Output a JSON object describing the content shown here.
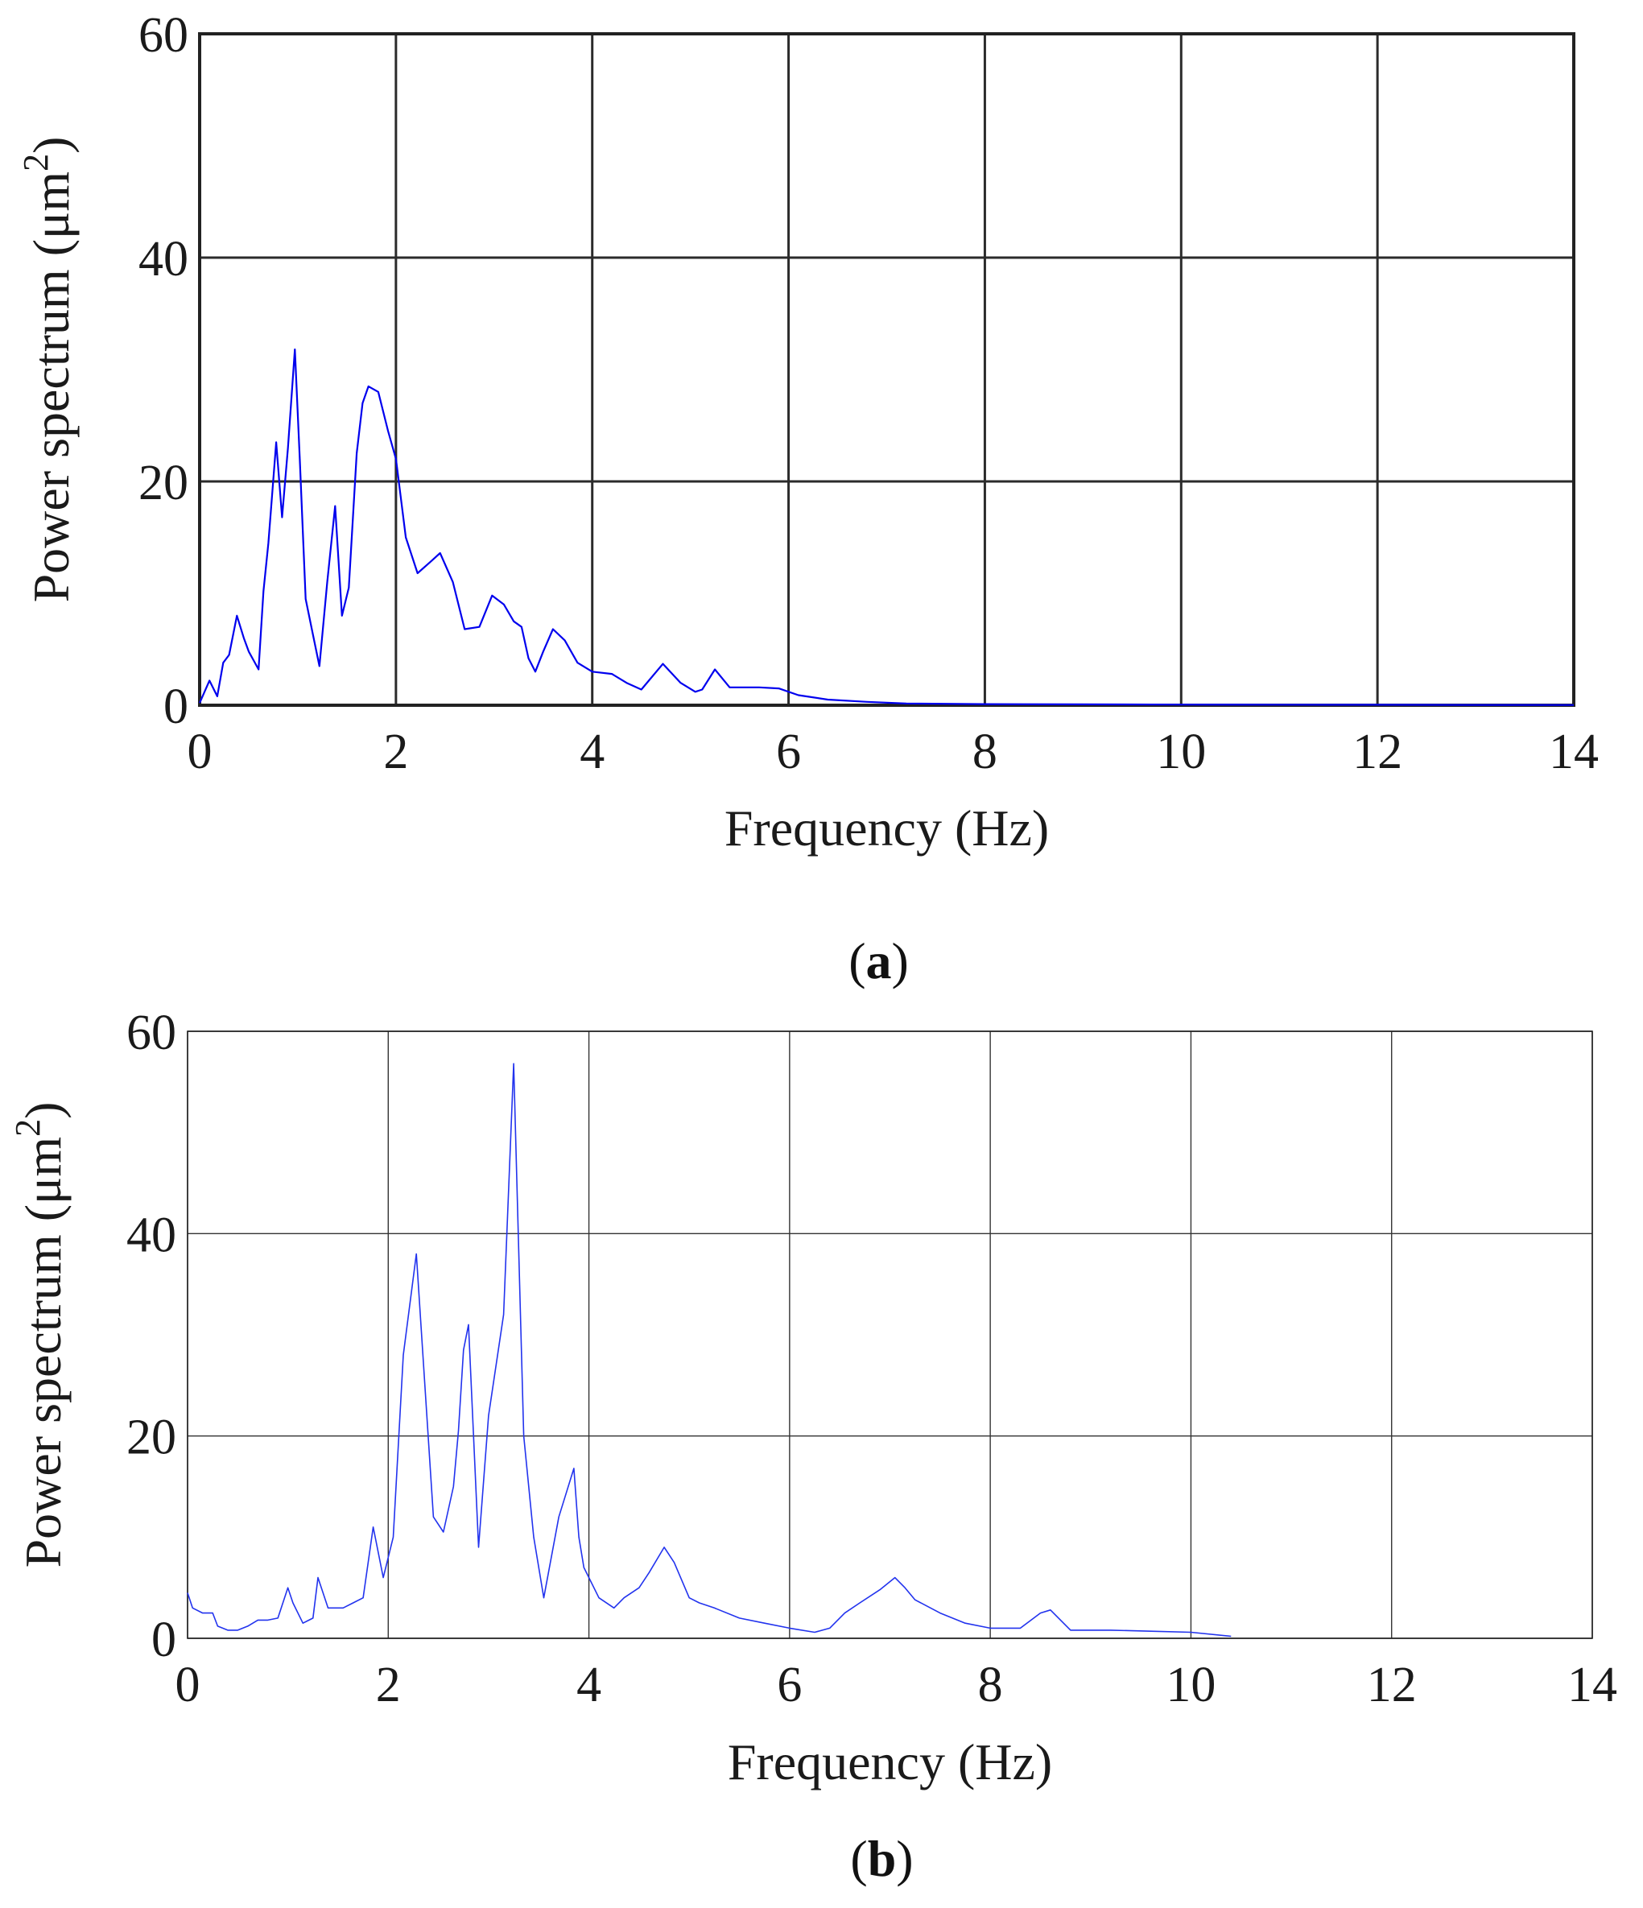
{
  "chart_data": [
    {
      "type": "line",
      "panel_label": "a",
      "title": "",
      "xlabel": "Frequency (Hz)",
      "ylabel_main": "Power spectrum (μm",
      "ylabel_sup": "2",
      "ylabel_close": ")",
      "xlim": [
        0,
        14
      ],
      "ylim": [
        0,
        60
      ],
      "xticks": [
        0,
        2,
        4,
        6,
        8,
        10,
        12,
        14
      ],
      "yticks": [
        0,
        20,
        40,
        60
      ],
      "grid": true,
      "line_color": "#0000ee",
      "series": [
        {
          "x": [
            0.0,
            0.1,
            0.18,
            0.24,
            0.3,
            0.38,
            0.45,
            0.5,
            0.55,
            0.6,
            0.65,
            0.7,
            0.78,
            0.84,
            0.9,
            0.97,
            1.02,
            1.08,
            1.15,
            1.22,
            1.3,
            1.38,
            1.45,
            1.52,
            1.6,
            1.66,
            1.72,
            1.82,
            1.92,
            2.0,
            2.1,
            2.22,
            2.35,
            2.45,
            2.58,
            2.7,
            2.85,
            2.98,
            3.1,
            3.2,
            3.28,
            3.35,
            3.42,
            3.5,
            3.6,
            3.72,
            3.85,
            4.0,
            4.2,
            4.35,
            4.5,
            4.72,
            4.9,
            5.05,
            5.12,
            5.25,
            5.4,
            5.55,
            5.7,
            5.9,
            6.1,
            6.4,
            6.8,
            7.2,
            8.0,
            9.0,
            10.0,
            11.0,
            12.0,
            13.0,
            14.0
          ],
          "y": [
            0.2,
            2.2,
            0.8,
            3.8,
            4.5,
            8.0,
            6.0,
            4.8,
            4.0,
            3.2,
            10.2,
            14.5,
            23.5,
            16.8,
            23.0,
            31.8,
            22.0,
            9.5,
            6.5,
            3.5,
            11.0,
            17.8,
            8.0,
            10.5,
            22.5,
            27.0,
            28.5,
            28.0,
            24.5,
            22.0,
            15.0,
            11.8,
            12.8,
            13.6,
            11.0,
            6.8,
            7.0,
            9.8,
            9.0,
            7.5,
            7.0,
            4.2,
            3.0,
            4.8,
            6.8,
            5.8,
            3.8,
            3.0,
            2.8,
            2.0,
            1.4,
            3.7,
            2.0,
            1.2,
            1.4,
            3.2,
            1.6,
            1.6,
            1.6,
            1.5,
            0.9,
            0.5,
            0.3,
            0.15,
            0.1,
            0.08,
            0.06,
            0.05,
            0.04,
            0.03,
            0.02
          ]
        }
      ]
    },
    {
      "type": "line",
      "panel_label": "b",
      "title": "",
      "xlabel": "Frequency (Hz)",
      "ylabel_main": "Power spectrum (μm",
      "ylabel_sup": "2",
      "ylabel_close": ")",
      "xlim": [
        0,
        14
      ],
      "ylim": [
        0,
        60
      ],
      "xticks": [
        0,
        2,
        4,
        6,
        8,
        10,
        12,
        14
      ],
      "yticks": [
        0,
        20,
        40,
        60
      ],
      "grid": true,
      "line_color": "#2233ee",
      "series": [
        {
          "x": [
            0.0,
            0.05,
            0.15,
            0.25,
            0.3,
            0.4,
            0.5,
            0.6,
            0.7,
            0.8,
            0.9,
            1.0,
            1.05,
            1.15,
            1.25,
            1.3,
            1.4,
            1.55,
            1.65,
            1.75,
            1.85,
            1.95,
            2.05,
            2.15,
            2.28,
            2.45,
            2.55,
            2.65,
            2.7,
            2.75,
            2.8,
            2.9,
            3.0,
            3.15,
            3.25,
            3.35,
            3.45,
            3.55,
            3.7,
            3.85,
            3.9,
            3.95,
            4.1,
            4.25,
            4.35,
            4.5,
            4.6,
            4.75,
            4.85,
            5.0,
            5.1,
            5.25,
            5.5,
            5.75,
            6.0,
            6.25,
            6.4,
            6.55,
            6.7,
            6.9,
            7.05,
            7.15,
            7.25,
            7.5,
            7.75,
            8.0,
            8.3,
            8.5,
            8.6,
            8.8,
            9.2,
            9.6,
            10.0,
            10.4
          ],
          "y": [
            4.5,
            3.0,
            2.5,
            2.5,
            1.2,
            0.8,
            0.8,
            1.2,
            1.8,
            1.8,
            2.0,
            5.0,
            3.5,
            1.5,
            2.0,
            6.0,
            3.0,
            3.0,
            3.5,
            4.0,
            11.0,
            6.0,
            10.0,
            28.0,
            38.0,
            12.0,
            10.5,
            15.0,
            20.5,
            28.5,
            31.0,
            9.0,
            22.0,
            32.0,
            56.8,
            20.0,
            10.0,
            4.0,
            12.0,
            16.8,
            10.0,
            7.0,
            4.0,
            3.0,
            4.0,
            5.0,
            6.5,
            9.0,
            7.5,
            4.0,
            3.5,
            3.0,
            2.0,
            1.5,
            1.0,
            0.6,
            1.0,
            2.5,
            3.5,
            4.8,
            6.0,
            5.0,
            3.8,
            2.5,
            1.5,
            1.0,
            1.0,
            2.5,
            2.8,
            0.8,
            0.8,
            0.7,
            0.6,
            0.2
          ]
        }
      ]
    }
  ]
}
